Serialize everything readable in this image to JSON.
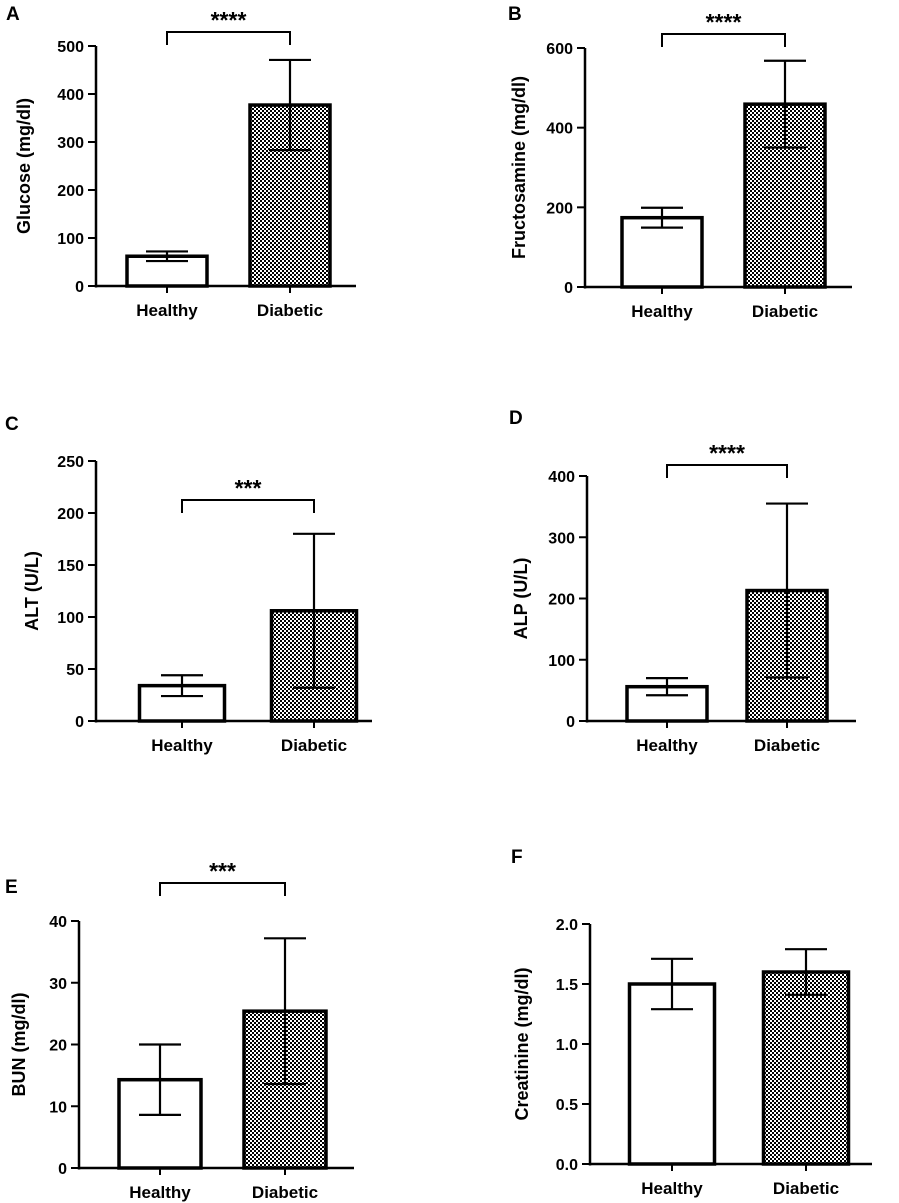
{
  "colors": {
    "axis": "#000000",
    "healthy_fill": "#ffffff",
    "diabetic_fill": "pattern-checkerboard"
  },
  "chart_data": [
    {
      "panel": "A",
      "type": "bar",
      "ylabel": "Glucose (mg/dl)",
      "categories": [
        "Healthy",
        "Diabetic"
      ],
      "values": [
        62,
        377
      ],
      "errors": [
        10,
        94
      ],
      "ylim": [
        0,
        500
      ],
      "yticks": [
        "0",
        "100",
        "200",
        "300",
        "400",
        "500"
      ],
      "significance": "****"
    },
    {
      "panel": "B",
      "type": "bar",
      "ylabel": "Fructosamine (mg/dl)",
      "categories": [
        "Healthy",
        "Diabetic"
      ],
      "values": [
        174,
        459
      ],
      "errors": [
        25,
        109
      ],
      "ylim": [
        0,
        600
      ],
      "yticks": [
        "0",
        "200",
        "400",
        "600"
      ],
      "significance": "****"
    },
    {
      "panel": "C",
      "type": "bar",
      "ylabel": "ALT (U/L)",
      "categories": [
        "Healthy",
        "Diabetic"
      ],
      "values": [
        34,
        106
      ],
      "errors": [
        10,
        74
      ],
      "ylim": [
        0,
        250
      ],
      "yticks": [
        "0",
        "50",
        "100",
        "150",
        "200",
        "250"
      ],
      "significance": "***"
    },
    {
      "panel": "D",
      "type": "bar",
      "ylabel": "ALP (U/L)",
      "categories": [
        "Healthy",
        "Diabetic"
      ],
      "values": [
        56,
        213
      ],
      "errors": [
        14,
        142
      ],
      "ylim": [
        0,
        400
      ],
      "yticks": [
        "0",
        "100",
        "200",
        "300",
        "400"
      ],
      "significance": "****"
    },
    {
      "panel": "E",
      "type": "bar",
      "ylabel": "BUN (mg/dl)",
      "categories": [
        "Healthy",
        "Diabetic"
      ],
      "values": [
        14.3,
        25.4
      ],
      "errors": [
        5.7,
        11.8
      ],
      "ylim": [
        0,
        40
      ],
      "yticks": [
        "0",
        "10",
        "20",
        "30",
        "40"
      ],
      "significance": "***"
    },
    {
      "panel": "F",
      "type": "bar",
      "ylabel": "Creatinine (mg/dl)",
      "categories": [
        "Healthy",
        "Diabetic"
      ],
      "values": [
        1.5,
        1.6
      ],
      "errors": [
        0.21,
        0.19
      ],
      "ylim": [
        0,
        2
      ],
      "yticks": [
        "0.0",
        "0.5",
        "1.0",
        "1.5",
        "2.0"
      ],
      "significance": ""
    }
  ]
}
